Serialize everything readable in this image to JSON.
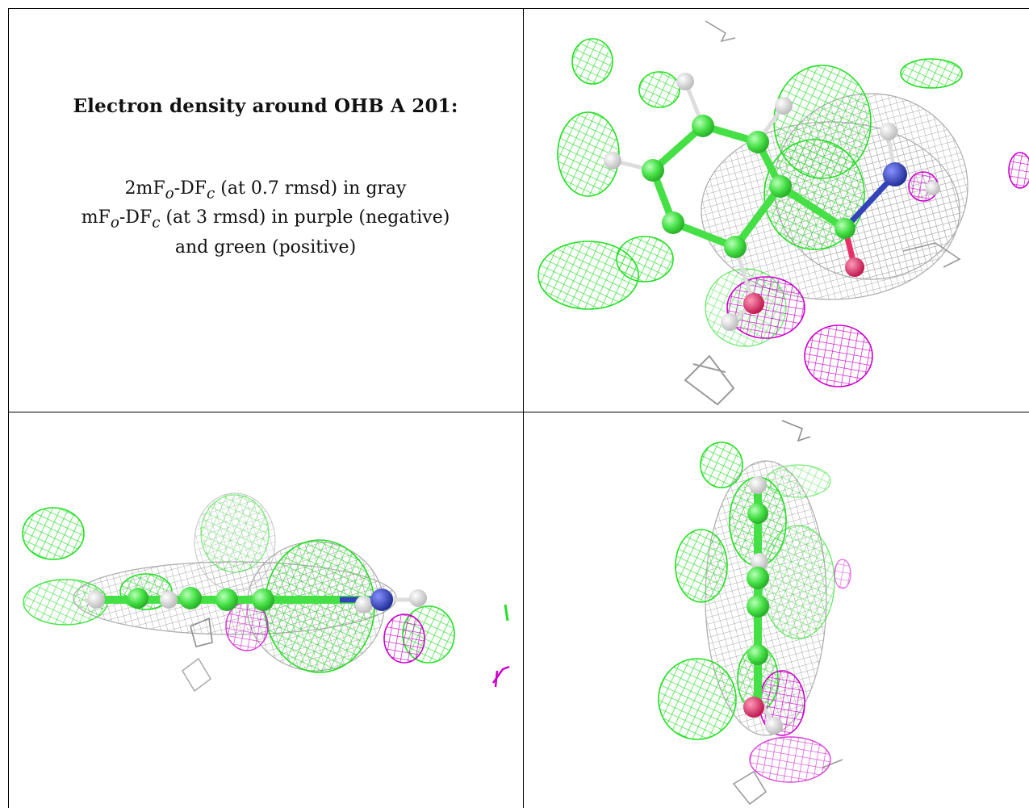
{
  "caption": {
    "title": "Electron density around OHB A 201:",
    "legend": {
      "line1": {
        "main": "2mF",
        "sub1": "o",
        "mid": "-DF",
        "sub2": "c",
        "rest": " (at 0.7 rmsd) in gray"
      },
      "line2": {
        "main": "mF",
        "sub1": "o",
        "mid": "-DF",
        "sub2": "c",
        "rest": " (at 3 rmsd) in purple (negative)"
      },
      "line3": "and green (positive)"
    }
  },
  "colors": {
    "positive_density": "#22e022",
    "negative_density": "#cc00cc",
    "map_2fofc": "#9a9a9a",
    "carbon": "#4ae84a",
    "nitrogen": "#3344bb",
    "oxygen": "#e8306a",
    "hydrogen": "#eeeeee"
  },
  "panels": [
    {
      "id": "top-right",
      "view": "face-on"
    },
    {
      "id": "bottom-left",
      "view": "edge-on-horizontal"
    },
    {
      "id": "bottom-right",
      "view": "edge-on-vertical"
    }
  ]
}
